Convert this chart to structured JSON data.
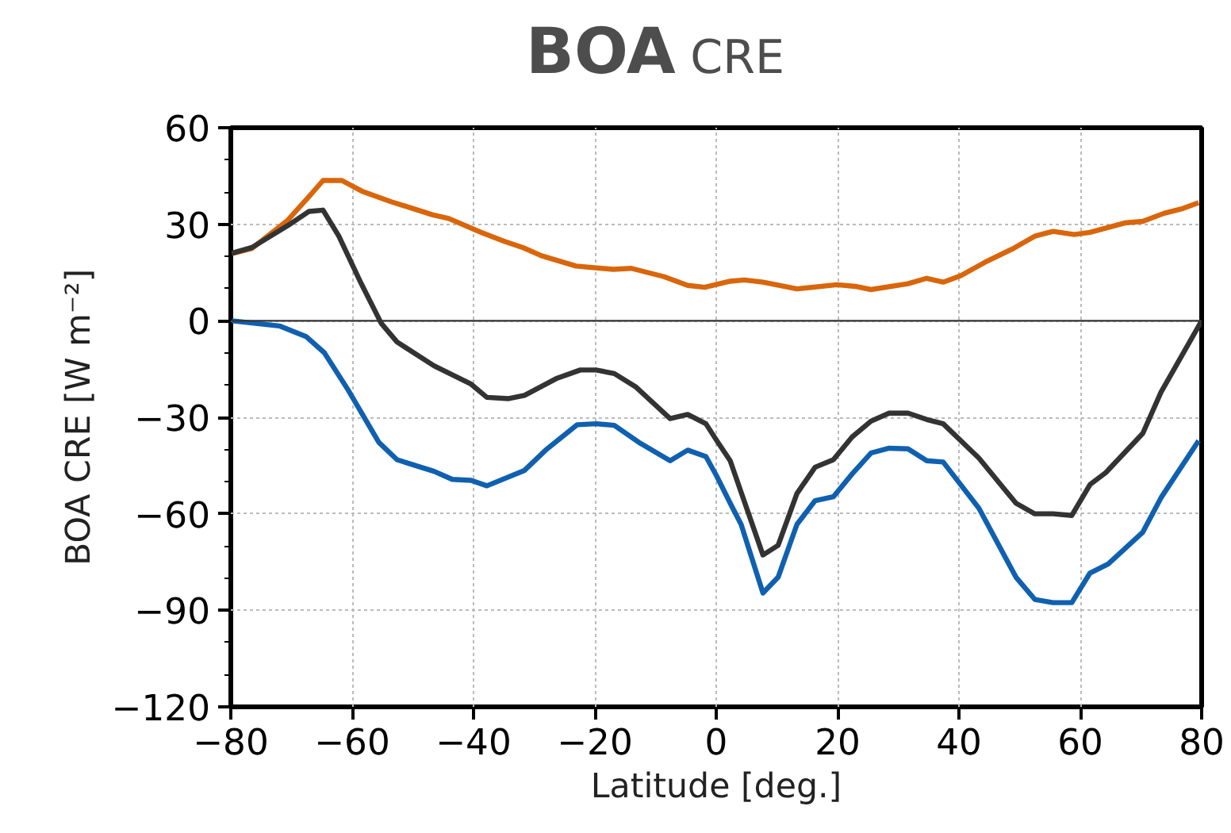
{
  "chart_data": {
    "type": "line",
    "title": "BOA CRE",
    "xlabel": "Latitude [deg.]",
    "ylabel": "BOA CRE [W m⁻²]",
    "xlim": [
      -80,
      80
    ],
    "xticks": [
      -80,
      -60,
      -40,
      -20,
      0,
      20,
      40,
      60,
      80
    ],
    "ylim": [
      -120,
      60
    ],
    "yticks": [
      -120,
      -90,
      -60,
      -30,
      0,
      30,
      60
    ],
    "grid": true,
    "line_style": "solid",
    "marker": "none",
    "ref_lines": [
      {
        "axis": "y",
        "value": 0,
        "color": "#333333"
      }
    ],
    "series": [
      {
        "color": "#d9660b",
        "x": [
          -79.8,
          -76.5,
          -70.6,
          -67.5,
          -64.8,
          -61.7,
          -58.4,
          -53.6,
          -50.2,
          -46.7,
          -44.1,
          -38.8,
          -34.9,
          -31.8,
          -28.8,
          -23.1,
          -17,
          -14,
          -8.6,
          -4.7,
          -1.9,
          2.3,
          4.6,
          7.7,
          13.3,
          19.9,
          22.9,
          25.5,
          31.6,
          34.7,
          37.4,
          40.3,
          44.2,
          49,
          52.5,
          55.5,
          59,
          61.6,
          67.3,
          70.3,
          73.8,
          76.9,
          79.5
        ],
        "values": [
          20.9,
          22.5,
          31.3,
          37.8,
          43.6,
          43.6,
          40.3,
          37,
          35,
          32.9,
          31.8,
          27.5,
          24.7,
          22.7,
          20.2,
          17,
          16,
          16.3,
          13.7,
          11,
          10.4,
          12.3,
          12.7,
          12,
          9.9,
          11.2,
          10.7,
          9.7,
          11.5,
          13.2,
          12,
          14,
          18.1,
          22.5,
          26.3,
          27.8,
          26.8,
          27.5,
          30.4,
          30.9,
          33.4,
          34.9,
          36.7
        ]
      },
      {
        "color": "#333333",
        "x": [
          -79.8,
          -76.5,
          -70.6,
          -67.1,
          -64.8,
          -62.2,
          -58.7,
          -55.2,
          -52.6,
          -46.5,
          -40.4,
          -37.8,
          -34.2,
          -31.6,
          -26.4,
          -22.4,
          -19.8,
          -16.8,
          -13.3,
          -7.6,
          -4.7,
          -1.7,
          0,
          2.3,
          7.7,
          10.2,
          13.3,
          16.3,
          19.3,
          22.4,
          25.5,
          28.5,
          31.6,
          34.7,
          37.4,
          43.3,
          49.4,
          52.5,
          55.5,
          58.6,
          61.6,
          64.2,
          70.3,
          73.3,
          80
        ],
        "values": [
          21,
          22.8,
          29.6,
          34,
          34.4,
          26.3,
          12.3,
          -0.8,
          -6.6,
          -14,
          -19.7,
          -23.8,
          -24.2,
          -23.2,
          -18,
          -15.3,
          -15.3,
          -16.4,
          -20.5,
          -30.4,
          -29.1,
          -32,
          -37,
          -43.5,
          -72.8,
          -69.8,
          -53.7,
          -45.5,
          -43.2,
          -36.1,
          -31.2,
          -28.7,
          -28.7,
          -30.7,
          -32,
          -42.7,
          -56.7,
          -60,
          -60,
          -60.5,
          -50.9,
          -47.2,
          -35,
          -22.2,
          0
        ]
      },
      {
        "color": "#1060b0",
        "x": [
          -79.8,
          -72,
          -67.6,
          -64.6,
          -60.7,
          -55.6,
          -52.6,
          -46.5,
          -43.5,
          -40.4,
          -37.8,
          -31.6,
          -28.1,
          -22.9,
          -19.8,
          -16.8,
          -12.5,
          -7.6,
          -4.7,
          -1.7,
          0,
          2.3,
          4.1,
          7.7,
          10.2,
          13.3,
          16.3,
          19.3,
          22.4,
          25.5,
          28.5,
          31.6,
          34.7,
          37.4,
          43.3,
          49.4,
          52.5,
          55.5,
          58.6,
          61.6,
          64.6,
          70.3,
          73.3,
          79.5
        ],
        "values": [
          0,
          -1.6,
          -4.9,
          -9.9,
          -21.4,
          -37.8,
          -43.2,
          -46.8,
          -49.3,
          -49.6,
          -51.3,
          -46.5,
          -40.2,
          -32.3,
          -32,
          -32.5,
          -38.1,
          -43.5,
          -40.2,
          -42.2,
          -48,
          -56.7,
          -63.3,
          -84.6,
          -79.7,
          -63.3,
          -55.9,
          -54.7,
          -47.6,
          -41.1,
          -39.6,
          -39.8,
          -43.5,
          -43.9,
          -58.3,
          -79.7,
          -86.6,
          -87.6,
          -87.6,
          -78.4,
          -75.6,
          -65.7,
          -55,
          -37.3
        ]
      }
    ]
  }
}
